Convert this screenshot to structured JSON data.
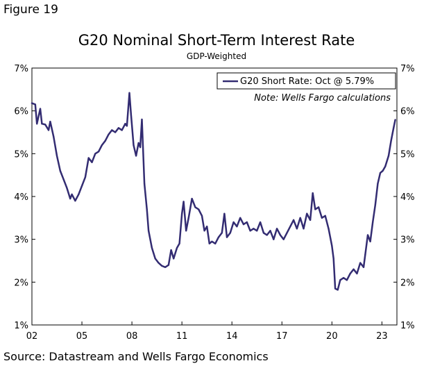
{
  "figure_label": "Figure 19",
  "source": "Source: Datastream and Wells Fargo Economics",
  "colors": {
    "series": "#332C72",
    "axis": "#000000",
    "background": "#FFFFFF"
  },
  "chart_data": {
    "type": "line",
    "title": "G20 Nominal Short-Term Interest Rate",
    "subtitle": "GDP-Weighted",
    "note": "Note: Wells Fargo calculations",
    "xlabel": "",
    "ylabel": "",
    "x_range": [
      2002.0,
      2023.9
    ],
    "ylim": [
      1,
      7
    ],
    "x_ticks": [
      {
        "value": 2002,
        "label": "02"
      },
      {
        "value": 2005,
        "label": "05"
      },
      {
        "value": 2008,
        "label": "08"
      },
      {
        "value": 2011,
        "label": "11"
      },
      {
        "value": 2014,
        "label": "14"
      },
      {
        "value": 2017,
        "label": "17"
      },
      {
        "value": 2020,
        "label": "20"
      },
      {
        "value": 2023,
        "label": "23"
      }
    ],
    "y_ticks": [
      {
        "value": 1,
        "label": "1%"
      },
      {
        "value": 2,
        "label": "2%"
      },
      {
        "value": 3,
        "label": "3%"
      },
      {
        "value": 4,
        "label": "4%"
      },
      {
        "value": 5,
        "label": "5%"
      },
      {
        "value": 6,
        "label": "6%"
      },
      {
        "value": 7,
        "label": "7%"
      }
    ],
    "grid": false,
    "legend_position": "top-right",
    "series": [
      {
        "name": "G20 Short Rate: Oct @ 5.79%",
        "points": [
          [
            2002.0,
            6.18
          ],
          [
            2002.2,
            6.15
          ],
          [
            2002.3,
            5.7
          ],
          [
            2002.5,
            6.05
          ],
          [
            2002.6,
            5.7
          ],
          [
            2002.8,
            5.68
          ],
          [
            2003.0,
            5.55
          ],
          [
            2003.1,
            5.75
          ],
          [
            2003.3,
            5.4
          ],
          [
            2003.5,
            4.95
          ],
          [
            2003.7,
            4.6
          ],
          [
            2003.9,
            4.4
          ],
          [
            2004.1,
            4.2
          ],
          [
            2004.3,
            3.95
          ],
          [
            2004.4,
            4.05
          ],
          [
            2004.6,
            3.9
          ],
          [
            2004.8,
            4.05
          ],
          [
            2005.0,
            4.25
          ],
          [
            2005.2,
            4.45
          ],
          [
            2005.4,
            4.9
          ],
          [
            2005.6,
            4.8
          ],
          [
            2005.8,
            5.0
          ],
          [
            2006.0,
            5.05
          ],
          [
            2006.2,
            5.2
          ],
          [
            2006.4,
            5.3
          ],
          [
            2006.6,
            5.45
          ],
          [
            2006.8,
            5.55
          ],
          [
            2007.0,
            5.5
          ],
          [
            2007.2,
            5.6
          ],
          [
            2007.4,
            5.55
          ],
          [
            2007.6,
            5.7
          ],
          [
            2007.7,
            5.65
          ],
          [
            2007.85,
            6.42
          ],
          [
            2007.95,
            5.9
          ],
          [
            2008.1,
            5.2
          ],
          [
            2008.25,
            4.95
          ],
          [
            2008.4,
            5.25
          ],
          [
            2008.5,
            5.15
          ],
          [
            2008.6,
            5.8
          ],
          [
            2008.75,
            4.3
          ],
          [
            2008.9,
            3.7
          ],
          [
            2009.0,
            3.2
          ],
          [
            2009.2,
            2.8
          ],
          [
            2009.4,
            2.55
          ],
          [
            2009.6,
            2.45
          ],
          [
            2009.8,
            2.38
          ],
          [
            2010.0,
            2.35
          ],
          [
            2010.2,
            2.4
          ],
          [
            2010.35,
            2.75
          ],
          [
            2010.5,
            2.55
          ],
          [
            2010.7,
            2.8
          ],
          [
            2010.85,
            2.9
          ],
          [
            2011.0,
            3.6
          ],
          [
            2011.1,
            3.88
          ],
          [
            2011.25,
            3.2
          ],
          [
            2011.4,
            3.5
          ],
          [
            2011.6,
            3.95
          ],
          [
            2011.8,
            3.75
          ],
          [
            2012.0,
            3.7
          ],
          [
            2012.2,
            3.55
          ],
          [
            2012.35,
            3.2
          ],
          [
            2012.5,
            3.3
          ],
          [
            2012.65,
            2.9
          ],
          [
            2012.8,
            2.95
          ],
          [
            2013.0,
            2.9
          ],
          [
            2013.2,
            3.05
          ],
          [
            2013.4,
            3.15
          ],
          [
            2013.55,
            3.6
          ],
          [
            2013.7,
            3.05
          ],
          [
            2013.9,
            3.15
          ],
          [
            2014.1,
            3.4
          ],
          [
            2014.3,
            3.3
          ],
          [
            2014.5,
            3.5
          ],
          [
            2014.7,
            3.35
          ],
          [
            2014.9,
            3.4
          ],
          [
            2015.1,
            3.2
          ],
          [
            2015.3,
            3.25
          ],
          [
            2015.5,
            3.2
          ],
          [
            2015.7,
            3.4
          ],
          [
            2015.9,
            3.15
          ],
          [
            2016.1,
            3.1
          ],
          [
            2016.3,
            3.2
          ],
          [
            2016.5,
            3.0
          ],
          [
            2016.7,
            3.25
          ],
          [
            2016.9,
            3.1
          ],
          [
            2017.1,
            3.0
          ],
          [
            2017.3,
            3.15
          ],
          [
            2017.5,
            3.3
          ],
          [
            2017.7,
            3.45
          ],
          [
            2017.9,
            3.25
          ],
          [
            2018.1,
            3.5
          ],
          [
            2018.3,
            3.25
          ],
          [
            2018.5,
            3.6
          ],
          [
            2018.7,
            3.45
          ],
          [
            2018.85,
            4.08
          ],
          [
            2019.0,
            3.7
          ],
          [
            2019.2,
            3.75
          ],
          [
            2019.4,
            3.5
          ],
          [
            2019.6,
            3.55
          ],
          [
            2019.8,
            3.25
          ],
          [
            2020.0,
            2.85
          ],
          [
            2020.1,
            2.55
          ],
          [
            2020.2,
            1.85
          ],
          [
            2020.35,
            1.82
          ],
          [
            2020.5,
            2.05
          ],
          [
            2020.7,
            2.1
          ],
          [
            2020.9,
            2.05
          ],
          [
            2021.1,
            2.2
          ],
          [
            2021.3,
            2.3
          ],
          [
            2021.5,
            2.2
          ],
          [
            2021.7,
            2.45
          ],
          [
            2021.9,
            2.35
          ],
          [
            2022.0,
            2.65
          ],
          [
            2022.15,
            3.1
          ],
          [
            2022.3,
            2.95
          ],
          [
            2022.45,
            3.4
          ],
          [
            2022.6,
            3.8
          ],
          [
            2022.75,
            4.3
          ],
          [
            2022.9,
            4.55
          ],
          [
            2023.05,
            4.6
          ],
          [
            2023.2,
            4.7
          ],
          [
            2023.4,
            4.95
          ],
          [
            2023.55,
            5.3
          ],
          [
            2023.7,
            5.6
          ],
          [
            2023.8,
            5.79
          ]
        ]
      }
    ]
  }
}
